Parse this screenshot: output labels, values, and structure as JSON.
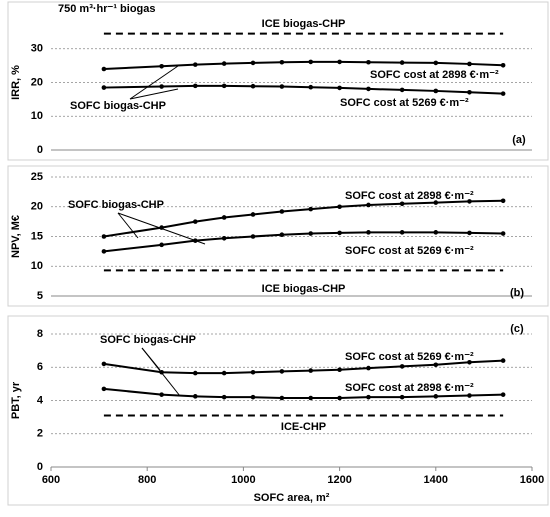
{
  "chart_data": [
    {
      "type": "line",
      "subtitle": "750 m³·hr⁻¹ biogas",
      "ylabel": "IRR, %",
      "panel_label": "(a)",
      "x": [
        710,
        830,
        900,
        960,
        1020,
        1080,
        1140,
        1200,
        1260,
        1330,
        1400,
        1470,
        1540
      ],
      "xlim": [
        600,
        1600
      ],
      "ylim": [
        0,
        40
      ],
      "yticks": [
        0,
        10,
        20,
        30
      ],
      "grid": true,
      "annotations": [
        "SOFC biogas-CHP"
      ],
      "reference_lines": [
        {
          "name": "ICE biogas-CHP",
          "value": 34.5
        }
      ],
      "series": [
        {
          "name": "SOFC cost at 2898 €·m⁻²",
          "color": "#000000",
          "values": [
            24.0,
            24.8,
            25.3,
            25.6,
            25.8,
            26.0,
            26.1,
            26.1,
            26.0,
            25.9,
            25.8,
            25.5,
            25.1
          ]
        },
        {
          "name": "SOFC cost at 5269 €·m⁻²",
          "color": "#000000",
          "values": [
            18.5,
            18.8,
            19.0,
            19.0,
            18.9,
            18.8,
            18.6,
            18.4,
            18.1,
            17.8,
            17.5,
            17.1,
            16.7
          ]
        }
      ]
    },
    {
      "type": "line",
      "ylabel": "NPV, M€",
      "panel_label": "(b)",
      "x": [
        710,
        830,
        900,
        960,
        1020,
        1080,
        1140,
        1200,
        1260,
        1330,
        1400,
        1470,
        1540
      ],
      "xlim": [
        600,
        1600
      ],
      "ylim": [
        5,
        25
      ],
      "yticks": [
        5,
        10,
        15,
        20,
        25
      ],
      "grid": true,
      "annotations": [
        "SOFC biogas-CHP"
      ],
      "reference_lines": [
        {
          "name": "ICE biogas-CHP",
          "value": 9.3
        }
      ],
      "series": [
        {
          "name": "SOFC cost at 2898 €·m⁻²",
          "color": "#000000",
          "values": [
            15.0,
            16.5,
            17.5,
            18.2,
            18.7,
            19.2,
            19.6,
            20.0,
            20.3,
            20.5,
            20.7,
            20.9,
            21.0
          ]
        },
        {
          "name": "SOFC cost at 5269 €·m⁻²",
          "color": "#000000",
          "values": [
            12.5,
            13.6,
            14.3,
            14.7,
            15.0,
            15.3,
            15.5,
            15.6,
            15.7,
            15.7,
            15.7,
            15.6,
            15.5
          ]
        }
      ]
    },
    {
      "type": "line",
      "ylabel": "PBT, yr",
      "panel_label": "(c)",
      "xlabel": "SOFC area, m²",
      "x": [
        710,
        830,
        900,
        960,
        1020,
        1080,
        1140,
        1200,
        1260,
        1330,
        1400,
        1470,
        1540
      ],
      "xlim": [
        600,
        1600
      ],
      "xticks": [
        600,
        800,
        1000,
        1200,
        1400,
        1600
      ],
      "ylim": [
        0,
        8
      ],
      "yticks": [
        0,
        2,
        4,
        6,
        8
      ],
      "grid": true,
      "annotations": [
        "SOFC biogas-CHP"
      ],
      "reference_lines": [
        {
          "name": "ICE-CHP",
          "value": 3.1
        }
      ],
      "series": [
        {
          "name": "SOFC cost at 5269 €·m⁻²",
          "color": "#000000",
          "values": [
            6.2,
            5.7,
            5.65,
            5.65,
            5.7,
            5.75,
            5.8,
            5.85,
            5.95,
            6.05,
            6.15,
            6.3,
            6.4
          ]
        },
        {
          "name": "SOFC cost at 2898 €·m⁻²",
          "color": "#000000",
          "values": [
            4.7,
            4.35,
            4.25,
            4.2,
            4.2,
            4.15,
            4.15,
            4.15,
            4.2,
            4.2,
            4.25,
            4.3,
            4.35
          ]
        }
      ]
    }
  ]
}
